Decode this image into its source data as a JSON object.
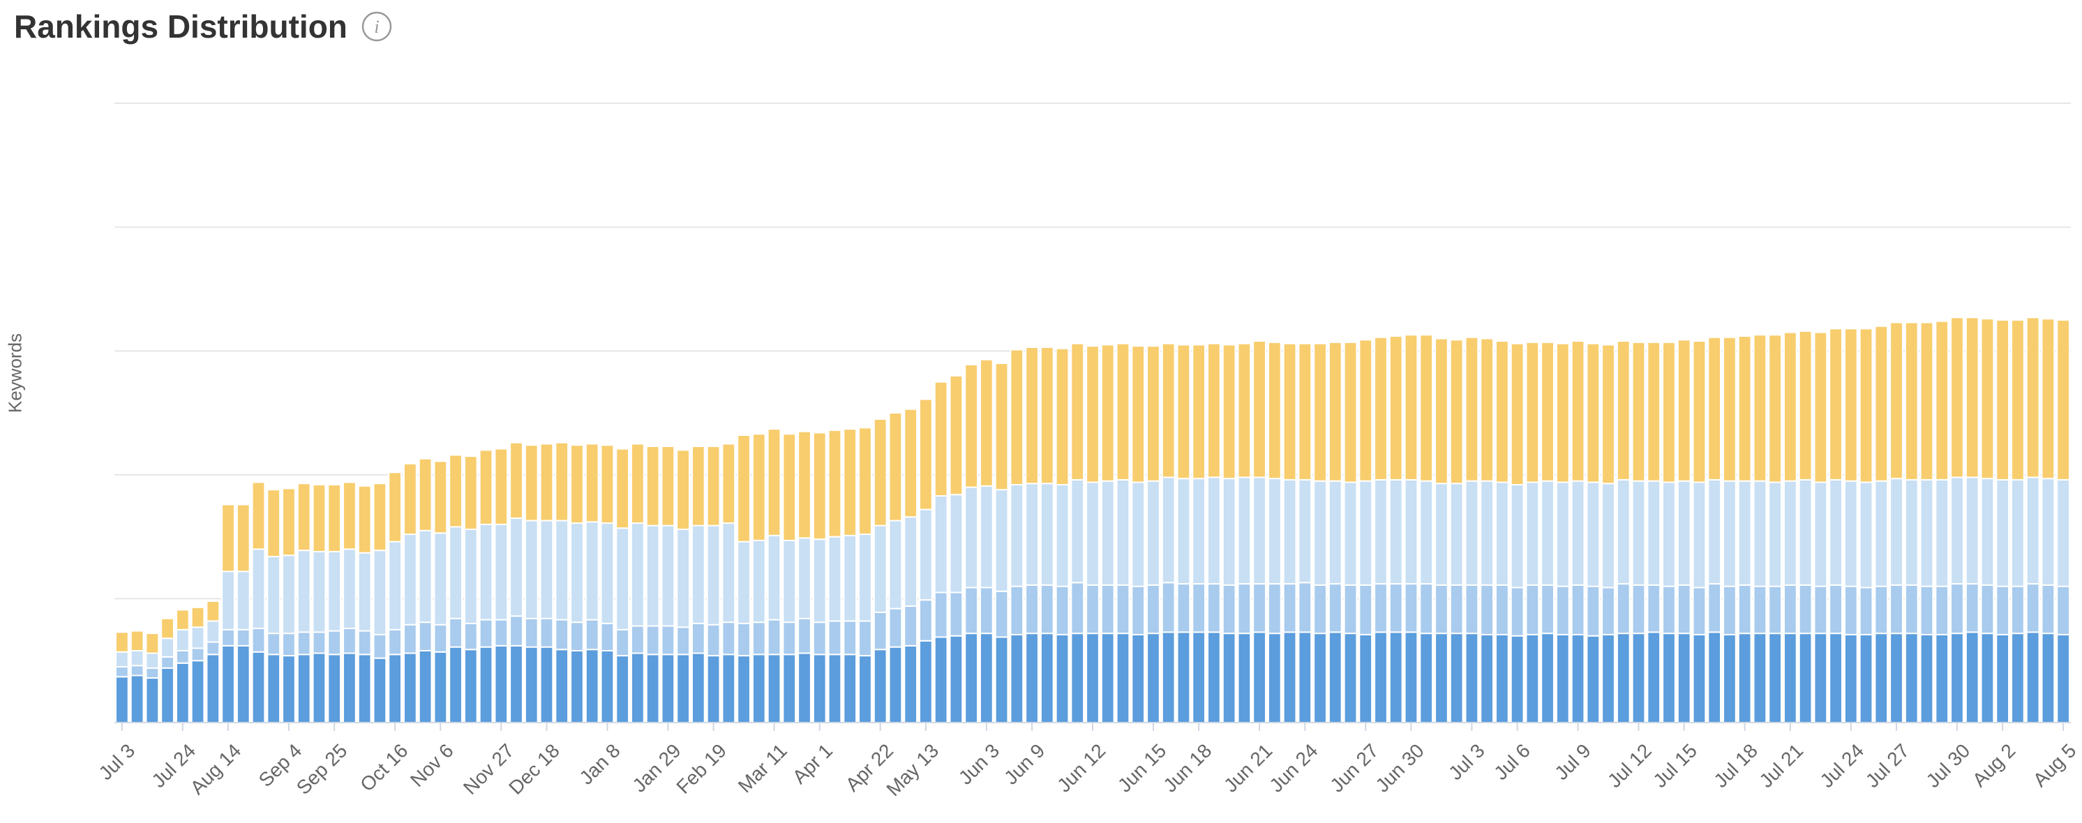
{
  "info_icon": "info-icon",
  "colors": {
    "top3": "#5b9ddd",
    "pos4_10": "#a8cbee",
    "pos11_20": "#c8dff4",
    "pos21_100": "#f8cd6d",
    "grid": "#e6e6e6",
    "axis_text": "#666666",
    "title_text": "#333333"
  },
  "chart_data": {
    "type": "bar",
    "stacked": true,
    "title": "Rankings Distribution",
    "xlabel": "",
    "ylabel": "Keywords",
    "grid": true,
    "y_tick_labels_shown": false,
    "legend": "none",
    "ylim": [
      0,
      500
    ],
    "x_tick_labels": [
      "Jul 3",
      "Jul 24",
      "Aug 14",
      "Sep 4",
      "Sep 25",
      "Oct 16",
      "Nov 6",
      "Nov 27",
      "Dec 18",
      "Jan 8",
      "Jan 29",
      "Feb 19",
      "Mar 11",
      "Apr 1",
      "Apr 22",
      "May 13",
      "Jun 3",
      "Jun 9",
      "Jun 12",
      "Jun 15",
      "Jun 18",
      "Jun 21",
      "Jun 24",
      "Jun 27",
      "Jun 30",
      "Jul 3",
      "Jul 6",
      "Jul 9",
      "Jul 12",
      "Jul 15",
      "Jul 18",
      "Jul 21",
      "Jul 24",
      "Jul 27",
      "Jul 30",
      "Aug 2",
      "Aug 5"
    ],
    "series": [
      {
        "values": [
          37,
          38,
          36,
          44,
          48,
          50,
          55,
          62,
          62,
          57,
          55,
          54,
          55,
          56,
          55,
          56,
          55,
          52,
          55,
          56,
          58,
          57,
          61,
          59,
          61,
          62,
          62,
          61,
          61,
          59,
          58,
          59,
          58,
          54,
          56,
          55,
          55,
          55,
          56,
          54,
          55,
          54,
          55,
          55,
          55,
          56,
          55,
          55,
          55,
          54,
          59,
          61,
          62,
          66,
          69,
          70,
          72,
          72,
          69,
          71,
          72,
          72,
          71,
          72,
          72,
          72,
          72,
          71,
          72,
          73,
          73,
          73,
          73,
          72,
          72,
          73,
          72,
          73,
          73,
          72,
          73,
          72,
          71,
          73,
          73,
          73,
          72,
          72,
          72,
          72,
          71,
          71,
          70,
          71,
          72,
          71,
          71,
          70,
          71,
          72,
          72,
          73,
          72,
          72,
          71,
          73,
          71,
          72,
          72,
          72,
          72,
          72,
          72,
          72,
          71,
          71,
          72,
          72,
          72,
          71,
          71,
          72,
          73,
          72,
          71,
          72,
          73,
          72,
          71
        ]
      },
      {
        "values": [
          8,
          8,
          8,
          9,
          10,
          10,
          10,
          13,
          13,
          19,
          17,
          18,
          18,
          17,
          19,
          20,
          19,
          19,
          20,
          23,
          23,
          22,
          23,
          21,
          22,
          21,
          24,
          23,
          23,
          24,
          23,
          24,
          22,
          21,
          22,
          23,
          23,
          22,
          24,
          25,
          26,
          26,
          26,
          28,
          26,
          28,
          26,
          27,
          27,
          28,
          30,
          31,
          32,
          33,
          36,
          35,
          37,
          37,
          37,
          39,
          39,
          39,
          39,
          41,
          39,
          39,
          39,
          39,
          39,
          40,
          39,
          39,
          39,
          39,
          40,
          39,
          40,
          39,
          40,
          39,
          39,
          39,
          40,
          39,
          39,
          39,
          40,
          39,
          39,
          39,
          40,
          40,
          39,
          40,
          39,
          39,
          40,
          40,
          38,
          40,
          39,
          38,
          38,
          39,
          38,
          39,
          39,
          39,
          38,
          38,
          39,
          39,
          38,
          39,
          39,
          38,
          38,
          39,
          39,
          39,
          39,
          40,
          39,
          39,
          39,
          38,
          39,
          39,
          39
        ]
      },
      {
        "values": [
          12,
          12,
          12,
          15,
          17,
          17,
          17,
          47,
          47,
          64,
          62,
          63,
          66,
          65,
          64,
          64,
          63,
          68,
          71,
          73,
          74,
          74,
          74,
          76,
          77,
          77,
          79,
          79,
          79,
          80,
          80,
          79,
          81,
          82,
          83,
          81,
          81,
          79,
          79,
          80,
          80,
          66,
          66,
          68,
          66,
          65,
          67,
          68,
          69,
          70,
          70,
          71,
          72,
          73,
          78,
          79,
          81,
          82,
          82,
          82,
          82,
          82,
          82,
          83,
          83,
          84,
          85,
          84,
          84,
          85,
          85,
          85,
          86,
          86,
          86,
          86,
          85,
          84,
          83,
          84,
          83,
          83,
          84,
          84,
          84,
          84,
          83,
          82,
          82,
          84,
          84,
          83,
          83,
          83,
          84,
          84,
          84,
          84,
          84,
          84,
          84,
          84,
          84,
          84,
          85,
          84,
          85,
          84,
          85,
          84,
          84,
          85,
          84,
          85,
          85,
          85,
          85,
          86,
          85,
          86,
          86,
          86,
          86,
          86,
          86,
          86,
          86,
          86,
          86
        ]
      },
      {
        "values": [
          16,
          16,
          16,
          16,
          16,
          16,
          16,
          54,
          54,
          54,
          54,
          54,
          54,
          54,
          54,
          54,
          54,
          54,
          56,
          57,
          58,
          58,
          58,
          59,
          60,
          61,
          61,
          61,
          62,
          63,
          63,
          63,
          63,
          64,
          64,
          64,
          64,
          64,
          64,
          64,
          64,
          86,
          86,
          86,
          86,
          86,
          86,
          86,
          86,
          86,
          86,
          87,
          87,
          89,
          92,
          96,
          99,
          102,
          102,
          109,
          110,
          110,
          110,
          110,
          110,
          110,
          110,
          110,
          109,
          108,
          108,
          108,
          108,
          108,
          108,
          110,
          110,
          110,
          110,
          111,
          112,
          113,
          114,
          115,
          116,
          117,
          118,
          117,
          116,
          116,
          115,
          114,
          114,
          113,
          112,
          112,
          113,
          112,
          112,
          112,
          112,
          112,
          113,
          114,
          114,
          115,
          116,
          117,
          118,
          119,
          120,
          120,
          121,
          122,
          123,
          124,
          125,
          126,
          127,
          127,
          128,
          129,
          129,
          129,
          129,
          129,
          129,
          129,
          129
        ]
      }
    ]
  }
}
